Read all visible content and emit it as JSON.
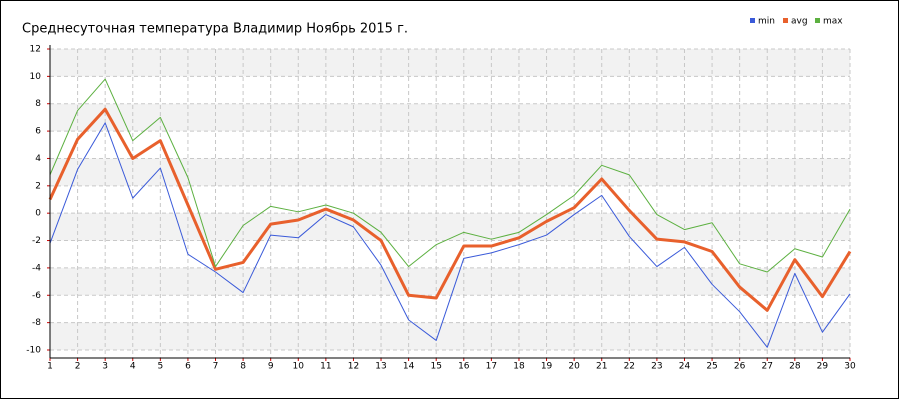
{
  "chart_data": {
    "type": "line",
    "title": "Среднесуточная температура Владимир  Ноябрь 2015 г.",
    "x": [
      1,
      2,
      3,
      4,
      5,
      6,
      7,
      8,
      9,
      10,
      11,
      12,
      13,
      14,
      15,
      16,
      17,
      18,
      19,
      20,
      21,
      22,
      23,
      24,
      25,
      26,
      27,
      28,
      29,
      30
    ],
    "series": [
      {
        "name": "min",
        "color": "#3a5ad9",
        "values": [
          -2.2,
          3.2,
          6.6,
          1.1,
          3.3,
          -3.0,
          -4.3,
          -5.8,
          -1.6,
          -1.8,
          -0.1,
          -1.0,
          -3.8,
          -7.8,
          -9.3,
          -3.3,
          -2.9,
          -2.3,
          -1.6,
          -0.1,
          1.3,
          -1.7,
          -3.9,
          -2.5,
          -5.2,
          -7.2,
          -9.8,
          -4.4,
          -8.7,
          -5.9
        ]
      },
      {
        "name": "avg",
        "color": "#e8602c",
        "values": [
          1.0,
          5.4,
          7.6,
          4.0,
          5.3,
          0.6,
          -4.1,
          -3.6,
          -0.8,
          -0.5,
          0.3,
          -0.5,
          -2.0,
          -6.0,
          -6.2,
          -2.4,
          -2.4,
          -1.8,
          -0.6,
          0.4,
          2.5,
          0.2,
          -1.9,
          -2.1,
          -2.8,
          -5.4,
          -7.1,
          -3.4,
          -6.1,
          -2.8
        ]
      },
      {
        "name": "max",
        "color": "#5cb040",
        "values": [
          2.8,
          7.5,
          9.8,
          5.3,
          7.0,
          2.6,
          -3.9,
          -0.9,
          0.5,
          0.1,
          0.6,
          0.0,
          -1.4,
          -3.9,
          -2.3,
          -1.4,
          -1.9,
          -1.4,
          -0.1,
          1.3,
          3.5,
          2.8,
          -0.1,
          -1.2,
          -0.7,
          -3.7,
          -4.3,
          -2.6,
          -3.2,
          0.3
        ]
      }
    ],
    "xlim": [
      1,
      30
    ],
    "xticks": [
      1,
      2,
      3,
      4,
      5,
      6,
      7,
      8,
      9,
      10,
      11,
      12,
      13,
      14,
      15,
      16,
      17,
      18,
      19,
      20,
      21,
      22,
      23,
      24,
      25,
      26,
      27,
      28,
      29,
      30
    ],
    "ylim": [
      -10,
      12
    ],
    "yticks": [
      -10,
      -8,
      -6,
      -4,
      -2,
      0,
      2,
      4,
      6,
      8,
      10,
      12
    ],
    "grid": true
  }
}
